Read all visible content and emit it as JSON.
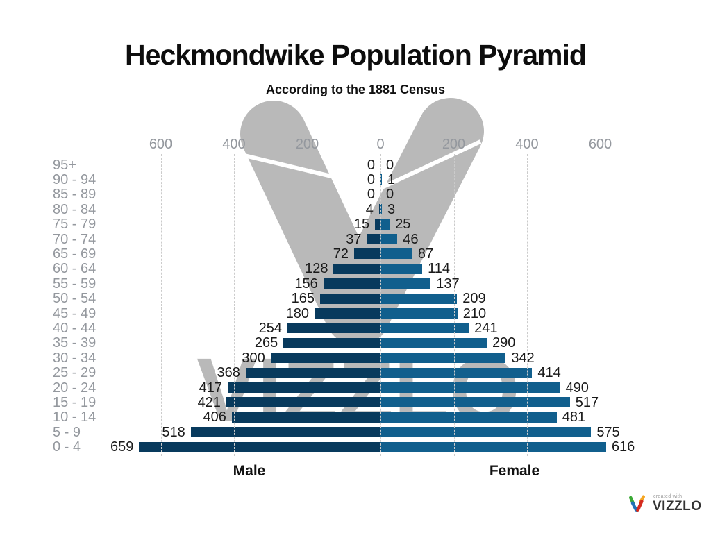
{
  "watermark": {
    "wordmark": "VIZZLO"
  },
  "badge": {
    "created_with": "created with",
    "brand": "VIZZLO"
  },
  "chart_data": {
    "type": "bar",
    "variant": "population-pyramid",
    "orientation": "horizontal-diverging",
    "title": "Heckmondwike Population Pyramid",
    "subtitle": "According to the 1881 Census",
    "categories": [
      "95+",
      "90 - 94",
      "85 - 89",
      "80 - 84",
      "75 - 79",
      "70 - 74",
      "65 - 69",
      "60 - 64",
      "55 - 59",
      "50 - 54",
      "45 - 49",
      "40 - 44",
      "35 - 39",
      "30 - 34",
      "25 - 29",
      "20 - 24",
      "15 - 19",
      "10 - 14",
      "5 - 9",
      "0 - 4"
    ],
    "series": [
      {
        "name": "Male",
        "side": "left",
        "color": "#083a5d",
        "values": [
          0,
          0,
          0,
          4,
          15,
          37,
          72,
          128,
          156,
          165,
          180,
          254,
          265,
          300,
          368,
          417,
          421,
          406,
          518,
          659
        ]
      },
      {
        "name": "Female",
        "side": "right",
        "color": "#115f8d",
        "values": [
          0,
          1,
          0,
          3,
          25,
          46,
          87,
          114,
          137,
          209,
          210,
          241,
          290,
          342,
          414,
          490,
          517,
          481,
          575,
          616
        ]
      }
    ],
    "x_axis": {
      "tick_labels": [
        "600",
        "400",
        "200",
        "0",
        "200",
        "400",
        "600"
      ],
      "tick_values": [
        -600,
        -400,
        -200,
        0,
        200,
        400,
        600
      ],
      "max": 600,
      "gridlines": "dashed"
    },
    "colors": {
      "tick_label": "#94989e",
      "age_label": "#94989e",
      "gridline": "#cbcbcb",
      "value_label": "#1a1a1a",
      "watermark_gray": "#b9b9b9"
    }
  }
}
